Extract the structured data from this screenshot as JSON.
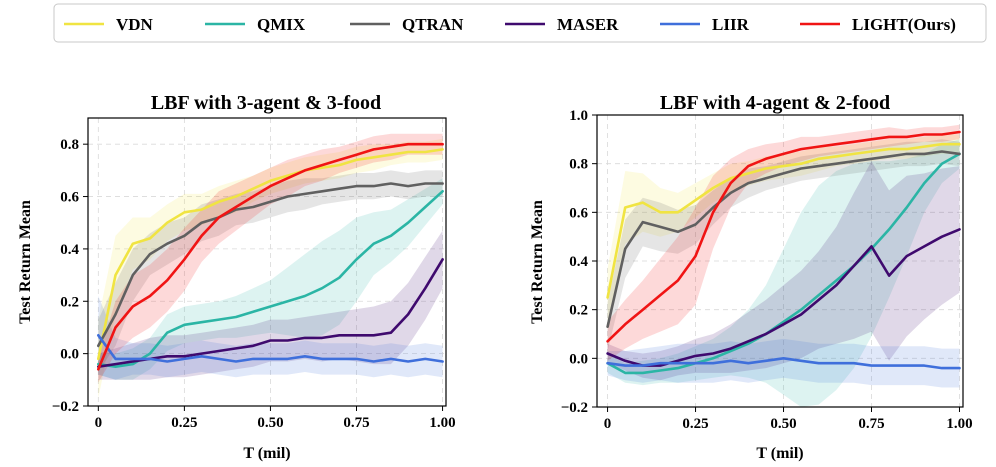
{
  "legend": [
    {
      "name": "VDN",
      "color": "#f0e442"
    },
    {
      "name": "QMIX",
      "color": "#2bb5a5"
    },
    {
      "name": "QTRAN",
      "color": "#606060"
    },
    {
      "name": "MASER",
      "color": "#3f0a6e"
    },
    {
      "name": "LIIR",
      "color": "#3f6fdb"
    },
    {
      "name": "LIGHT(Ours)",
      "color": "#f01414"
    }
  ],
  "chart_data": [
    {
      "type": "line",
      "title": "LBF with 3-agent & 3-food",
      "xlabel": "T (mil)",
      "ylabel": "Test Return Mean",
      "xlim": [
        -0.03,
        1.01
      ],
      "ylim": [
        -0.2,
        0.9
      ],
      "xticks": [
        0,
        0.25,
        0.5,
        0.75,
        1.0
      ],
      "xtick_labels": [
        "0",
        "0.25",
        "0.50",
        "0.75",
        "1.00"
      ],
      "yticks": [
        -0.2,
        0.0,
        0.2,
        0.4,
        0.6,
        0.8
      ],
      "ytick_labels": [
        "−0.2",
        "0.0",
        "0.2",
        "0.4",
        "0.6",
        "0.8"
      ],
      "x": [
        0,
        0.05,
        0.1,
        0.15,
        0.2,
        0.25,
        0.3,
        0.35,
        0.4,
        0.45,
        0.5,
        0.55,
        0.6,
        0.65,
        0.7,
        0.75,
        0.8,
        0.85,
        0.9,
        0.95,
        1.0
      ],
      "series": [
        {
          "name": "VDN",
          "values": [
            -0.02,
            0.3,
            0.42,
            0.44,
            0.5,
            0.54,
            0.55,
            0.58,
            0.6,
            0.63,
            0.66,
            0.68,
            0.7,
            0.71,
            0.72,
            0.74,
            0.75,
            0.76,
            0.77,
            0.77,
            0.78
          ],
          "band": [
            0.15,
            0.15,
            0.1,
            0.08,
            0.07,
            0.07,
            0.06,
            0.06,
            0.06,
            0.05,
            0.05,
            0.05,
            0.05,
            0.05,
            0.05,
            0.05,
            0.05,
            0.04,
            0.04,
            0.04,
            0.04
          ]
        },
        {
          "name": "QMIX",
          "values": [
            -0.04,
            -0.05,
            -0.04,
            0.0,
            0.08,
            0.11,
            0.12,
            0.13,
            0.14,
            0.16,
            0.18,
            0.2,
            0.22,
            0.25,
            0.29,
            0.36,
            0.42,
            0.45,
            0.5,
            0.56,
            0.62
          ],
          "band": [
            0.04,
            0.05,
            0.06,
            0.06,
            0.07,
            0.07,
            0.07,
            0.07,
            0.08,
            0.09,
            0.1,
            0.13,
            0.16,
            0.18,
            0.18,
            0.16,
            0.12,
            0.1,
            0.09,
            0.07,
            0.05
          ]
        },
        {
          "name": "QTRAN",
          "values": [
            0.03,
            0.15,
            0.3,
            0.38,
            0.42,
            0.45,
            0.5,
            0.52,
            0.55,
            0.56,
            0.58,
            0.6,
            0.61,
            0.62,
            0.63,
            0.64,
            0.64,
            0.65,
            0.64,
            0.65,
            0.65
          ],
          "band": [
            0.1,
            0.12,
            0.1,
            0.08,
            0.08,
            0.07,
            0.07,
            0.07,
            0.06,
            0.06,
            0.06,
            0.06,
            0.06,
            0.05,
            0.05,
            0.05,
            0.05,
            0.05,
            0.05,
            0.05,
            0.05
          ]
        },
        {
          "name": "MASER",
          "values": [
            -0.05,
            -0.04,
            -0.03,
            -0.02,
            -0.01,
            -0.01,
            0.0,
            0.01,
            0.02,
            0.03,
            0.05,
            0.05,
            0.06,
            0.06,
            0.07,
            0.07,
            0.07,
            0.08,
            0.15,
            0.25,
            0.36
          ],
          "band": [
            0.05,
            0.06,
            0.07,
            0.08,
            0.08,
            0.08,
            0.08,
            0.08,
            0.08,
            0.08,
            0.08,
            0.08,
            0.08,
            0.09,
            0.09,
            0.1,
            0.11,
            0.12,
            0.12,
            0.12,
            0.11
          ]
        },
        {
          "name": "LIIR",
          "values": [
            0.07,
            -0.02,
            -0.02,
            -0.02,
            -0.03,
            -0.02,
            -0.01,
            -0.02,
            -0.03,
            -0.02,
            -0.02,
            -0.02,
            -0.01,
            -0.02,
            -0.02,
            -0.02,
            -0.03,
            -0.02,
            -0.03,
            -0.02,
            -0.03
          ],
          "band": [
            0.15,
            0.08,
            0.06,
            0.06,
            0.06,
            0.06,
            0.06,
            0.06,
            0.06,
            0.06,
            0.06,
            0.06,
            0.06,
            0.06,
            0.06,
            0.06,
            0.06,
            0.06,
            0.06,
            0.06,
            0.06
          ]
        },
        {
          "name": "LIGHT(Ours)",
          "values": [
            -0.06,
            0.1,
            0.18,
            0.22,
            0.28,
            0.36,
            0.45,
            0.52,
            0.56,
            0.6,
            0.64,
            0.67,
            0.7,
            0.72,
            0.74,
            0.76,
            0.78,
            0.79,
            0.8,
            0.8,
            0.8
          ],
          "band": [
            0.05,
            0.1,
            0.12,
            0.12,
            0.12,
            0.12,
            0.1,
            0.1,
            0.09,
            0.08,
            0.07,
            0.07,
            0.06,
            0.06,
            0.05,
            0.05,
            0.05,
            0.05,
            0.04,
            0.04,
            0.04
          ]
        }
      ]
    },
    {
      "type": "line",
      "title": "LBF with 4-agent & 2-food",
      "xlabel": "T (mil)",
      "ylabel": "Test Return Mean",
      "xlim": [
        -0.03,
        1.01
      ],
      "ylim": [
        -0.2,
        1.0
      ],
      "xticks": [
        0,
        0.25,
        0.5,
        0.75,
        1.0
      ],
      "xtick_labels": [
        "0",
        "0.25",
        "0.50",
        "0.75",
        "1.00"
      ],
      "yticks": [
        -0.2,
        0.0,
        0.2,
        0.4,
        0.6,
        0.8,
        1.0
      ],
      "ytick_labels": [
        "−0.2",
        "0.0",
        "0.2",
        "0.4",
        "0.6",
        "0.8",
        "1.0"
      ],
      "x": [
        0,
        0.05,
        0.1,
        0.15,
        0.2,
        0.25,
        0.3,
        0.35,
        0.4,
        0.45,
        0.5,
        0.55,
        0.6,
        0.65,
        0.7,
        0.75,
        0.8,
        0.85,
        0.9,
        0.95,
        1.0
      ],
      "series": [
        {
          "name": "VDN",
          "values": [
            0.25,
            0.62,
            0.64,
            0.6,
            0.6,
            0.65,
            0.7,
            0.74,
            0.76,
            0.78,
            0.79,
            0.8,
            0.82,
            0.83,
            0.84,
            0.85,
            0.86,
            0.86,
            0.87,
            0.88,
            0.88
          ],
          "band": [
            0.12,
            0.15,
            0.12,
            0.1,
            0.08,
            0.07,
            0.06,
            0.06,
            0.05,
            0.05,
            0.05,
            0.05,
            0.05,
            0.04,
            0.04,
            0.04,
            0.04,
            0.04,
            0.04,
            0.04,
            0.04
          ]
        },
        {
          "name": "QMIX",
          "values": [
            -0.02,
            -0.06,
            -0.06,
            -0.05,
            -0.04,
            -0.02,
            0.0,
            0.03,
            0.06,
            0.1,
            0.15,
            0.2,
            0.26,
            0.32,
            0.38,
            0.45,
            0.53,
            0.62,
            0.72,
            0.8,
            0.84
          ],
          "band": [
            0.04,
            0.04,
            0.05,
            0.05,
            0.06,
            0.07,
            0.08,
            0.1,
            0.14,
            0.2,
            0.3,
            0.4,
            0.45,
            0.45,
            0.42,
            0.36,
            0.28,
            0.2,
            0.12,
            0.08,
            0.06
          ]
        },
        {
          "name": "QTRAN",
          "values": [
            0.13,
            0.45,
            0.56,
            0.54,
            0.52,
            0.55,
            0.62,
            0.68,
            0.72,
            0.74,
            0.76,
            0.78,
            0.79,
            0.8,
            0.81,
            0.82,
            0.83,
            0.84,
            0.84,
            0.85,
            0.84
          ],
          "band": [
            0.1,
            0.12,
            0.1,
            0.1,
            0.09,
            0.08,
            0.07,
            0.06,
            0.06,
            0.05,
            0.05,
            0.05,
            0.05,
            0.05,
            0.05,
            0.05,
            0.05,
            0.05,
            0.05,
            0.05,
            0.05
          ]
        },
        {
          "name": "MASER",
          "values": [
            0.02,
            -0.01,
            -0.03,
            -0.03,
            -0.01,
            0.01,
            0.02,
            0.04,
            0.07,
            0.1,
            0.14,
            0.18,
            0.24,
            0.3,
            0.38,
            0.46,
            0.34,
            0.42,
            0.46,
            0.5,
            0.53
          ],
          "band": [
            0.04,
            0.04,
            0.05,
            0.06,
            0.06,
            0.07,
            0.08,
            0.1,
            0.12,
            0.14,
            0.16,
            0.18,
            0.2,
            0.24,
            0.3,
            0.35,
            0.35,
            0.33,
            0.3,
            0.28,
            0.26
          ]
        },
        {
          "name": "LIIR",
          "values": [
            -0.02,
            -0.03,
            -0.03,
            -0.02,
            -0.02,
            -0.02,
            -0.02,
            -0.01,
            -0.02,
            -0.01,
            0.0,
            -0.01,
            -0.02,
            -0.02,
            -0.02,
            -0.03,
            -0.03,
            -0.03,
            -0.03,
            -0.04,
            -0.04
          ],
          "band": [
            0.05,
            0.06,
            0.07,
            0.07,
            0.08,
            0.08,
            0.08,
            0.08,
            0.08,
            0.08,
            0.08,
            0.08,
            0.08,
            0.08,
            0.08,
            0.08,
            0.08,
            0.08,
            0.08,
            0.08,
            0.08
          ]
        },
        {
          "name": "LIGHT(Ours)",
          "values": [
            0.07,
            0.14,
            0.2,
            0.26,
            0.32,
            0.42,
            0.6,
            0.72,
            0.79,
            0.82,
            0.84,
            0.86,
            0.87,
            0.88,
            0.89,
            0.9,
            0.91,
            0.91,
            0.92,
            0.92,
            0.93
          ],
          "band": [
            0.08,
            0.1,
            0.12,
            0.15,
            0.18,
            0.2,
            0.15,
            0.1,
            0.07,
            0.06,
            0.05,
            0.05,
            0.04,
            0.04,
            0.04,
            0.04,
            0.04,
            0.03,
            0.03,
            0.03,
            0.03
          ]
        }
      ]
    }
  ]
}
